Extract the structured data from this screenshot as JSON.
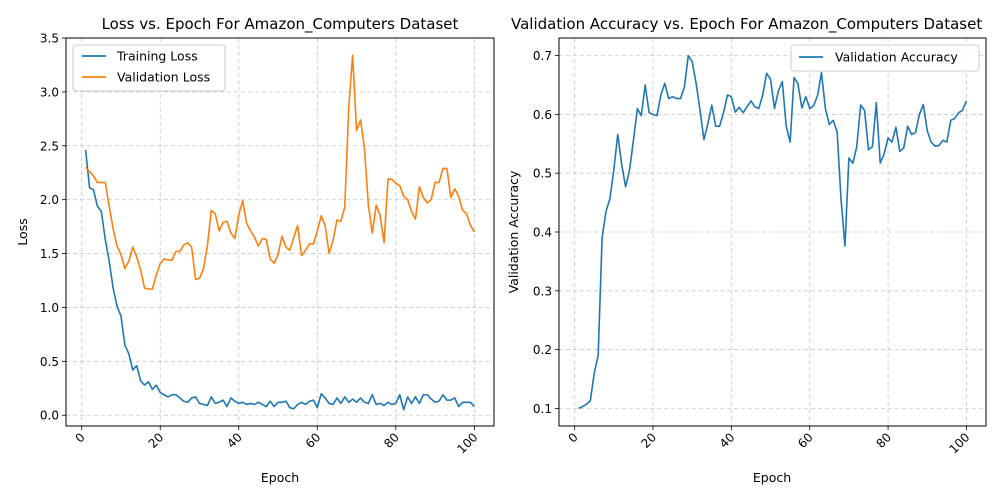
{
  "chart_data": [
    {
      "type": "line",
      "title": "Loss vs. Epoch For Amazon_Computers Dataset",
      "xlabel": "Epoch",
      "ylabel": "Loss",
      "xlim": [
        -4,
        105
      ],
      "ylim": [
        -0.1,
        3.5
      ],
      "xticks": [
        0,
        20,
        40,
        60,
        80,
        100
      ],
      "xtick_labels": [
        "0",
        "20",
        "40",
        "60",
        "80",
        "100"
      ],
      "yticks": [
        0.0,
        0.5,
        1.0,
        1.5,
        2.0,
        2.5,
        3.0,
        3.5
      ],
      "ytick_labels": [
        "0.0",
        "0.5",
        "1.0",
        "1.5",
        "2.0",
        "2.5",
        "3.0",
        "3.5"
      ],
      "grid": true,
      "legend_position": "top-left",
      "x": [
        1,
        2,
        3,
        4,
        5,
        6,
        7,
        8,
        9,
        10,
        11,
        12,
        13,
        14,
        15,
        16,
        17,
        18,
        19,
        20,
        21,
        22,
        23,
        24,
        25,
        26,
        27,
        28,
        29,
        30,
        31,
        32,
        33,
        34,
        35,
        36,
        37,
        38,
        39,
        40,
        41,
        42,
        43,
        44,
        45,
        46,
        47,
        48,
        49,
        50,
        51,
        52,
        53,
        54,
        55,
        56,
        57,
        58,
        59,
        60,
        61,
        62,
        63,
        64,
        65,
        66,
        67,
        68,
        69,
        70,
        71,
        72,
        73,
        74,
        75,
        76,
        77,
        78,
        79,
        80,
        81,
        82,
        83,
        84,
        85,
        86,
        87,
        88,
        89,
        90,
        91,
        92,
        93,
        94,
        95,
        96,
        97,
        98,
        99,
        100
      ],
      "series": [
        {
          "name": "Training Loss",
          "color": "#1f77b4",
          "values": [
            2.46,
            2.11,
            2.09,
            1.94,
            1.89,
            1.63,
            1.43,
            1.18,
            1.01,
            0.92,
            0.65,
            0.57,
            0.42,
            0.46,
            0.32,
            0.28,
            0.31,
            0.24,
            0.28,
            0.21,
            0.19,
            0.17,
            0.19,
            0.19,
            0.16,
            0.13,
            0.12,
            0.16,
            0.17,
            0.11,
            0.1,
            0.09,
            0.17,
            0.11,
            0.12,
            0.14,
            0.08,
            0.16,
            0.13,
            0.11,
            0.12,
            0.1,
            0.11,
            0.1,
            0.12,
            0.1,
            0.08,
            0.13,
            0.08,
            0.12,
            0.12,
            0.13,
            0.07,
            0.06,
            0.1,
            0.12,
            0.1,
            0.13,
            0.14,
            0.07,
            0.2,
            0.16,
            0.11,
            0.1,
            0.16,
            0.11,
            0.17,
            0.12,
            0.15,
            0.12,
            0.16,
            0.12,
            0.11,
            0.19,
            0.1,
            0.11,
            0.09,
            0.12,
            0.1,
            0.11,
            0.19,
            0.05,
            0.17,
            0.11,
            0.17,
            0.11,
            0.19,
            0.19,
            0.15,
            0.12,
            0.13,
            0.19,
            0.14,
            0.14,
            0.16,
            0.08,
            0.12,
            0.12,
            0.12,
            0.08
          ]
        },
        {
          "name": "Validation Loss",
          "color": "#ff7f0e",
          "values": [
            2.3,
            2.26,
            2.22,
            2.16,
            2.16,
            2.16,
            1.94,
            1.73,
            1.57,
            1.49,
            1.36,
            1.43,
            1.56,
            1.47,
            1.35,
            1.18,
            1.17,
            1.17,
            1.3,
            1.41,
            1.45,
            1.44,
            1.44,
            1.52,
            1.52,
            1.58,
            1.6,
            1.56,
            1.26,
            1.27,
            1.36,
            1.57,
            1.9,
            1.87,
            1.71,
            1.79,
            1.8,
            1.69,
            1.64,
            1.86,
            1.99,
            1.78,
            1.71,
            1.65,
            1.57,
            1.64,
            1.63,
            1.45,
            1.41,
            1.49,
            1.66,
            1.56,
            1.53,
            1.65,
            1.76,
            1.48,
            1.53,
            1.59,
            1.59,
            1.71,
            1.85,
            1.76,
            1.5,
            1.62,
            1.81,
            1.8,
            1.93,
            2.85,
            3.34,
            2.64,
            2.74,
            2.48,
            1.95,
            1.69,
            1.95,
            1.85,
            1.6,
            2.19,
            2.19,
            2.15,
            2.13,
            2.03,
            2.0,
            1.89,
            1.82,
            2.12,
            2.02,
            1.97,
            2.0,
            2.16,
            2.16,
            2.29,
            2.29,
            2.02,
            2.1,
            2.03,
            1.9,
            1.87,
            1.76,
            1.7
          ]
        }
      ]
    },
    {
      "type": "line",
      "title": "Validation Accuracy vs. Epoch For Amazon_Computers Dataset",
      "xlabel": "Epoch",
      "ylabel": "Validation Accuracy",
      "xlim": [
        -4,
        105
      ],
      "ylim": [
        0.07,
        0.73
      ],
      "xticks": [
        0,
        20,
        40,
        60,
        80,
        100
      ],
      "xtick_labels": [
        "0",
        "20",
        "40",
        "60",
        "80",
        "100"
      ],
      "yticks": [
        0.1,
        0.2,
        0.3,
        0.4,
        0.5,
        0.6,
        0.7
      ],
      "ytick_labels": [
        "0.1",
        "0.2",
        "0.3",
        "0.4",
        "0.5",
        "0.6",
        "0.7"
      ],
      "grid": true,
      "legend_position": "top-right",
      "x": [
        1,
        2,
        3,
        4,
        5,
        6,
        7,
        8,
        9,
        10,
        11,
        12,
        13,
        14,
        15,
        16,
        17,
        18,
        19,
        20,
        21,
        22,
        23,
        24,
        25,
        26,
        27,
        28,
        29,
        30,
        31,
        32,
        33,
        34,
        35,
        36,
        37,
        38,
        39,
        40,
        41,
        42,
        43,
        44,
        45,
        46,
        47,
        48,
        49,
        50,
        51,
        52,
        53,
        54,
        55,
        56,
        57,
        58,
        59,
        60,
        61,
        62,
        63,
        64,
        65,
        66,
        67,
        68,
        69,
        70,
        71,
        72,
        73,
        74,
        75,
        76,
        77,
        78,
        79,
        80,
        81,
        82,
        83,
        84,
        85,
        86,
        87,
        88,
        89,
        90,
        91,
        92,
        93,
        94,
        95,
        96,
        97,
        98,
        99,
        100
      ],
      "series": [
        {
          "name": "Validation Accuracy",
          "color": "#1f77b4",
          "values": [
            0.1,
            0.103,
            0.107,
            0.113,
            0.16,
            0.19,
            0.39,
            0.435,
            0.457,
            0.506,
            0.566,
            0.515,
            0.477,
            0.505,
            0.556,
            0.61,
            0.598,
            0.65,
            0.603,
            0.6,
            0.598,
            0.633,
            0.653,
            0.627,
            0.63,
            0.627,
            0.627,
            0.646,
            0.7,
            0.69,
            0.653,
            0.607,
            0.557,
            0.584,
            0.616,
            0.58,
            0.58,
            0.603,
            0.633,
            0.63,
            0.604,
            0.612,
            0.603,
            0.613,
            0.623,
            0.613,
            0.61,
            0.633,
            0.67,
            0.66,
            0.61,
            0.64,
            0.656,
            0.58,
            0.553,
            0.663,
            0.652,
            0.611,
            0.63,
            0.61,
            0.615,
            0.632,
            0.671,
            0.61,
            0.583,
            0.59,
            0.57,
            0.455,
            0.376,
            0.526,
            0.517,
            0.545,
            0.616,
            0.607,
            0.54,
            0.545,
            0.62,
            0.517,
            0.533,
            0.56,
            0.553,
            0.578,
            0.537,
            0.543,
            0.58,
            0.566,
            0.569,
            0.6,
            0.617,
            0.572,
            0.553,
            0.546,
            0.547,
            0.556,
            0.553,
            0.59,
            0.593,
            0.603,
            0.607,
            0.623
          ]
        }
      ]
    }
  ]
}
